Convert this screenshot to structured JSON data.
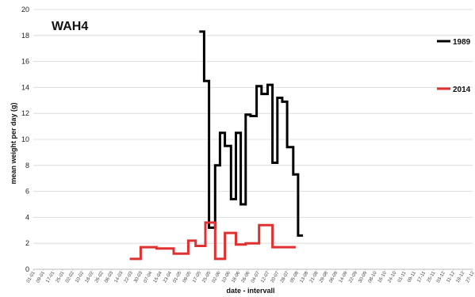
{
  "chart_data": {
    "type": "line",
    "title": "WAH4",
    "xlabel": "date - intervall",
    "ylabel": "mean weight per day (g)",
    "ylim": [
      0,
      20
    ],
    "yticks": [
      "0",
      "2",
      "4",
      "6",
      "8",
      "10",
      "12",
      "14",
      "16",
      "18",
      "20"
    ],
    "categories": [
      "01-01",
      "09-01",
      "17-01",
      "25-01",
      "02-02",
      "10-02",
      "18-02",
      "26-02",
      "06-03",
      "14-03",
      "22-03",
      "30-03",
      "07-04",
      "15-04",
      "23-04",
      "01-05",
      "09-05",
      "17-05",
      "25-05",
      "02-06",
      "10-06",
      "18-06",
      "26-06",
      "04-07",
      "12-07",
      "20-07",
      "28-07",
      "05-08",
      "13-08",
      "21-08",
      "29-08",
      "06-09",
      "14-09",
      "22-09",
      "30-09",
      "08-10",
      "16-10",
      "24-10",
      "01-11",
      "09-11",
      "17-11",
      "25-11",
      "03-12",
      "11-12",
      "19-12",
      "27-12"
    ],
    "grid": "horizontal",
    "legend_position": "right",
    "series": [
      {
        "name": "1989",
        "color": "#000000",
        "points": [
          [
            "17-05",
            18.3
          ],
          [
            "21-05",
            18.3
          ],
          [
            "21-05",
            14.5
          ],
          [
            "25-05",
            14.5
          ],
          [
            "25-05",
            3.2
          ],
          [
            "30-05",
            3.2
          ],
          [
            "30-05",
            8.0
          ],
          [
            "03-06",
            8.0
          ],
          [
            "03-06",
            10.5
          ],
          [
            "07-06",
            10.5
          ],
          [
            "07-06",
            9.5
          ],
          [
            "12-06",
            9.5
          ],
          [
            "12-06",
            5.4
          ],
          [
            "16-06",
            5.4
          ],
          [
            "16-06",
            10.5
          ],
          [
            "20-06",
            10.5
          ],
          [
            "20-06",
            5.0
          ],
          [
            "24-06",
            5.0
          ],
          [
            "24-06",
            11.9
          ],
          [
            "28-06",
            11.9
          ],
          [
            "28-06",
            11.8
          ],
          [
            "03-07",
            11.8
          ],
          [
            "03-07",
            14.1
          ],
          [
            "07-07",
            14.1
          ],
          [
            "07-07",
            13.5
          ],
          [
            "12-07",
            13.5
          ],
          [
            "12-07",
            14.2
          ],
          [
            "16-07",
            14.2
          ],
          [
            "16-07",
            8.2
          ],
          [
            "20-07",
            8.2
          ],
          [
            "20-07",
            13.2
          ],
          [
            "24-07",
            13.2
          ],
          [
            "24-07",
            12.9
          ],
          [
            "28-07",
            12.9
          ],
          [
            "28-07",
            9.4
          ],
          [
            "02-08",
            9.4
          ],
          [
            "02-08",
            7.3
          ],
          [
            "06-08",
            7.3
          ],
          [
            "06-08",
            2.6
          ],
          [
            "10-08",
            2.6
          ]
        ]
      },
      {
        "name": "2014",
        "color": "#e03030",
        "points": [
          [
            "21-03",
            0.8
          ],
          [
            "30-03",
            0.8
          ],
          [
            "30-03",
            1.7
          ],
          [
            "12-04",
            1.7
          ],
          [
            "12-04",
            1.6
          ],
          [
            "26-04",
            1.6
          ],
          [
            "26-04",
            1.2
          ],
          [
            "08-05",
            1.2
          ],
          [
            "08-05",
            2.2
          ],
          [
            "14-05",
            2.2
          ],
          [
            "14-05",
            1.8
          ],
          [
            "22-05",
            1.8
          ],
          [
            "22-05",
            3.6
          ],
          [
            "30-05",
            3.6
          ],
          [
            "30-05",
            0.8
          ],
          [
            "07-06",
            0.8
          ],
          [
            "07-06",
            2.8
          ],
          [
            "16-06",
            2.8
          ],
          [
            "16-06",
            1.9
          ],
          [
            "24-06",
            1.9
          ],
          [
            "24-06",
            2.0
          ],
          [
            "05-07",
            2.0
          ],
          [
            "05-07",
            3.4
          ],
          [
            "16-07",
            3.4
          ],
          [
            "16-07",
            1.7
          ],
          [
            "04-08",
            1.7
          ]
        ]
      }
    ]
  }
}
